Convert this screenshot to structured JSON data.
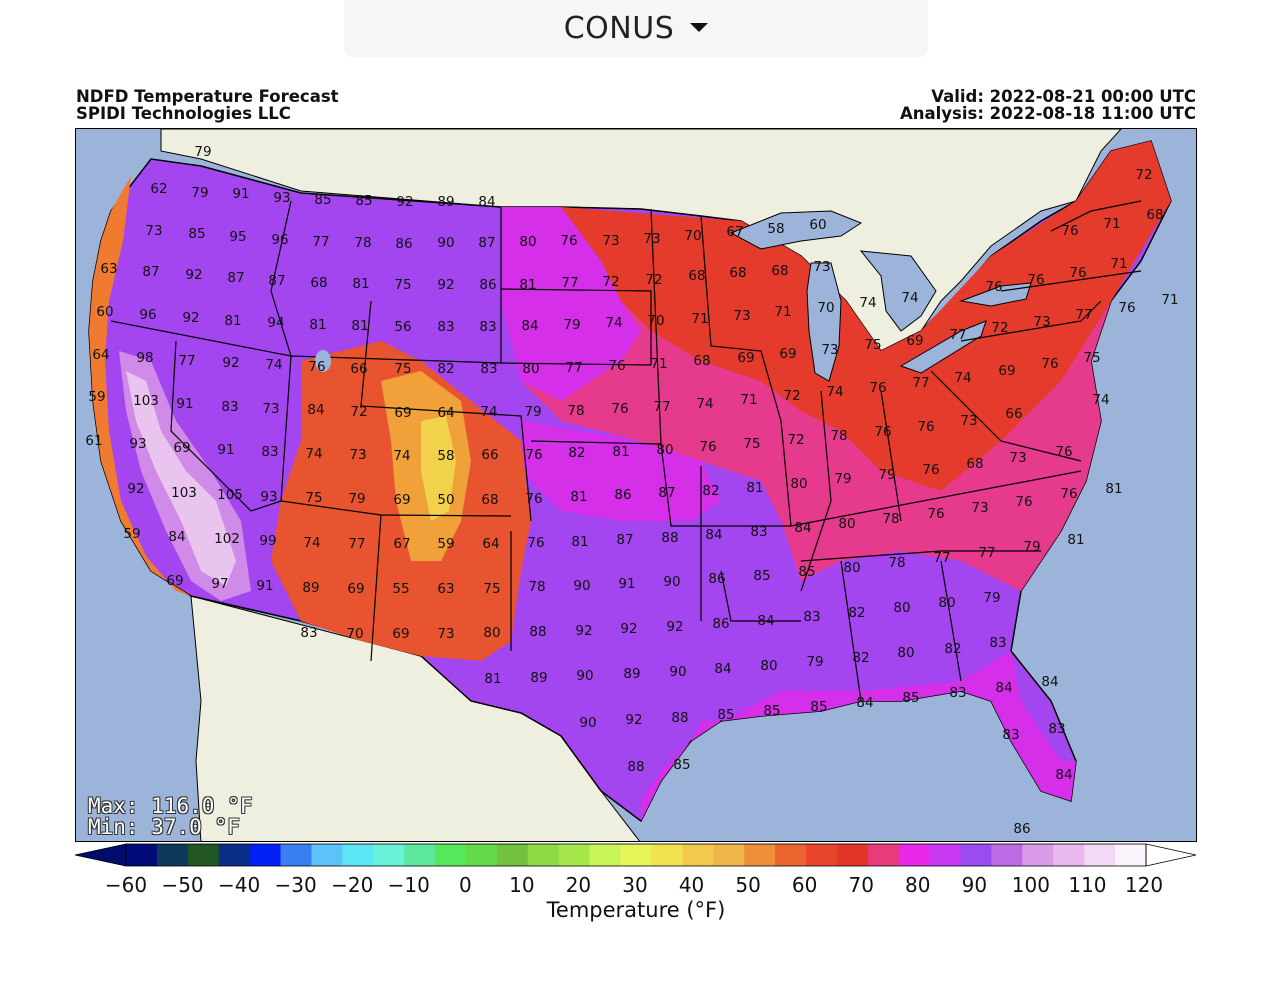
{
  "region_selector": {
    "label": "CONUS"
  },
  "header": {
    "title": "NDFD Temperature Forecast",
    "credit": "SPIDI Technologies LLC",
    "valid": "Valid: 2022-08-21 00:00 UTC",
    "analysis": "Analysis: 2022-08-18 11:00 UTC"
  },
  "stats": {
    "max": "Max: 116.0 °F",
    "min": "Min: 37.0 °F"
  },
  "colorbar": {
    "label": "Temperature (°F)",
    "ticks": [
      "−60",
      "−50",
      "−40",
      "−30",
      "−20",
      "−10",
      "0",
      "10",
      "20",
      "30",
      "40",
      "50",
      "60",
      "70",
      "80",
      "90",
      "100",
      "110",
      "120"
    ],
    "colors": [
      "#000b7a",
      "#10385a",
      "#225622",
      "#0a2f87",
      "#0320f5",
      "#3a7ff0",
      "#5cc2f7",
      "#5ce6f5",
      "#69f2d8",
      "#5ee89e",
      "#55e85c",
      "#64d94a",
      "#72c23e",
      "#8cdb44",
      "#a6e84b",
      "#c7f55a",
      "#e6f55a",
      "#f2e24e",
      "#f2c94c",
      "#f2b54a",
      "#ee8f3a",
      "#eb6430",
      "#e8452c",
      "#e3352a",
      "#e83b7c",
      "#e82ae8",
      "#c73af2",
      "#9b4bf0",
      "#bd6ae3",
      "#d99ae8",
      "#e8b8ef",
      "#f2d9f5",
      "#faf3fb"
    ],
    "under_color": "#000b6e",
    "over_color": "#ffffff"
  },
  "map": {
    "colors": {
      "ocean": "#9db4da",
      "land_outside": "#efefdf",
      "lakes": "#9db4da",
      "t_55_65": "#e8542f",
      "t_65_75": "#e43b2c",
      "t_75_85": "#e63a8c",
      "t_85_95": "#a446ef",
      "t_80_90": "#d52fea",
      "t_95_105": "#d08be8",
      "t_100_plus": "#e8c4ef",
      "coast_cool": "#f07a30"
    },
    "labels": [
      [
        "79",
        202,
        150
      ],
      [
        "62",
        158,
        187
      ],
      [
        "79",
        199,
        191
      ],
      [
        "91",
        240,
        192
      ],
      [
        "93",
        281,
        196
      ],
      [
        "85",
        322,
        198
      ],
      [
        "85",
        363,
        199
      ],
      [
        "92",
        404,
        200
      ],
      [
        "89",
        445,
        200
      ],
      [
        "84",
        486,
        200
      ],
      [
        "73",
        153,
        229
      ],
      [
        "85",
        196,
        232
      ],
      [
        "95",
        237,
        235
      ],
      [
        "96",
        279,
        238
      ],
      [
        "77",
        320,
        240
      ],
      [
        "78",
        362,
        241
      ],
      [
        "86",
        403,
        242
      ],
      [
        "90",
        445,
        241
      ],
      [
        "87",
        486,
        241
      ],
      [
        "80",
        527,
        240
      ],
      [
        "76",
        568,
        239
      ],
      [
        "73",
        610,
        239
      ],
      [
        "73",
        651,
        237
      ],
      [
        "70",
        692,
        234
      ],
      [
        "67",
        734,
        230
      ],
      [
        "58",
        775,
        227
      ],
      [
        "60",
        817,
        223
      ],
      [
        "71",
        1111,
        222
      ],
      [
        "72",
        1143,
        173
      ],
      [
        "76",
        1069,
        229
      ],
      [
        "68",
        1154,
        213
      ],
      [
        "63",
        108,
        267
      ],
      [
        "87",
        150,
        270
      ],
      [
        "92",
        193,
        273
      ],
      [
        "87",
        235,
        276
      ],
      [
        "87",
        276,
        279
      ],
      [
        "68",
        318,
        281
      ],
      [
        "81",
        360,
        282
      ],
      [
        "75",
        402,
        283
      ],
      [
        "92",
        445,
        283
      ],
      [
        "86",
        487,
        283
      ],
      [
        "81",
        527,
        283
      ],
      [
        "77",
        569,
        281
      ],
      [
        "72",
        610,
        280
      ],
      [
        "72",
        653,
        278
      ],
      [
        "68",
        696,
        274
      ],
      [
        "68",
        737,
        271
      ],
      [
        "68",
        779,
        269
      ],
      [
        "73",
        821,
        265
      ],
      [
        "76",
        993,
        285
      ],
      [
        "76",
        1035,
        278
      ],
      [
        "76",
        1077,
        271
      ],
      [
        "71",
        1118,
        262
      ],
      [
        "71",
        1169,
        298
      ],
      [
        "60",
        104,
        310
      ],
      [
        "96",
        147,
        313
      ],
      [
        "92",
        190,
        316
      ],
      [
        "81",
        232,
        319
      ],
      [
        "94",
        275,
        321
      ],
      [
        "81",
        317,
        323
      ],
      [
        "81",
        359,
        324
      ],
      [
        "56",
        402,
        325
      ],
      [
        "83",
        445,
        325
      ],
      [
        "83",
        487,
        325
      ],
      [
        "84",
        529,
        324
      ],
      [
        "79",
        571,
        323
      ],
      [
        "74",
        613,
        321
      ],
      [
        "70",
        655,
        319
      ],
      [
        "71",
        699,
        317
      ],
      [
        "73",
        741,
        314
      ],
      [
        "71",
        782,
        310
      ],
      [
        "70",
        825,
        306
      ],
      [
        "74",
        867,
        301
      ],
      [
        "74",
        909,
        296
      ],
      [
        "72",
        999,
        326
      ],
      [
        "73",
        1041,
        320
      ],
      [
        "77",
        1083,
        313
      ],
      [
        "76",
        1126,
        306
      ],
      [
        "64",
        100,
        353
      ],
      [
        "98",
        144,
        356
      ],
      [
        "77",
        186,
        359
      ],
      [
        "92",
        230,
        361
      ],
      [
        "74",
        273,
        363
      ],
      [
        "76",
        316,
        365
      ],
      [
        "66",
        358,
        367
      ],
      [
        "75",
        402,
        367
      ],
      [
        "82",
        445,
        367
      ],
      [
        "83",
        488,
        367
      ],
      [
        "80",
        530,
        367
      ],
      [
        "77",
        573,
        366
      ],
      [
        "76",
        616,
        364
      ],
      [
        "71",
        658,
        362
      ],
      [
        "68",
        701,
        359
      ],
      [
        "69",
        745,
        356
      ],
      [
        "69",
        787,
        352
      ],
      [
        "73",
        829,
        348
      ],
      [
        "75",
        872,
        343
      ],
      [
        "69",
        914,
        339
      ],
      [
        "77",
        957,
        333
      ],
      [
        "69",
        1006,
        369
      ],
      [
        "76",
        1049,
        362
      ],
      [
        "75",
        1091,
        356
      ],
      [
        "59",
        96,
        395
      ],
      [
        "103",
        145,
        399
      ],
      [
        "91",
        184,
        402
      ],
      [
        "83",
        229,
        405
      ],
      [
        "73",
        270,
        407
      ],
      [
        "84",
        315,
        408
      ],
      [
        "72",
        358,
        410
      ],
      [
        "69",
        402,
        411
      ],
      [
        "64",
        445,
        411
      ],
      [
        "74",
        488,
        410
      ],
      [
        "79",
        532,
        410
      ],
      [
        "78",
        575,
        409
      ],
      [
        "76",
        619,
        407
      ],
      [
        "77",
        661,
        405
      ],
      [
        "74",
        704,
        402
      ],
      [
        "71",
        748,
        398
      ],
      [
        "72",
        791,
        394
      ],
      [
        "74",
        834,
        390
      ],
      [
        "76",
        877,
        386
      ],
      [
        "77",
        920,
        381
      ],
      [
        "74",
        962,
        376
      ],
      [
        "74",
        1100,
        398
      ],
      [
        "61",
        93,
        439
      ],
      [
        "93",
        137,
        442
      ],
      [
        "69",
        181,
        446
      ],
      [
        "91",
        225,
        448
      ],
      [
        "83",
        269,
        450
      ],
      [
        "74",
        313,
        452
      ],
      [
        "73",
        357,
        453
      ],
      [
        "74",
        401,
        454
      ],
      [
        "58",
        445,
        454
      ],
      [
        "66",
        489,
        453
      ],
      [
        "76",
        533,
        453
      ],
      [
        "82",
        576,
        451
      ],
      [
        "81",
        620,
        450
      ],
      [
        "80",
        664,
        448
      ],
      [
        "76",
        707,
        445
      ],
      [
        "75",
        751,
        442
      ],
      [
        "72",
        795,
        438
      ],
      [
        "78",
        838,
        434
      ],
      [
        "76",
        882,
        430
      ],
      [
        "76",
        925,
        425
      ],
      [
        "73",
        968,
        419
      ],
      [
        "66",
        1013,
        412
      ],
      [
        "76",
        1063,
        450
      ],
      [
        "92",
        135,
        487
      ],
      [
        "103",
        183,
        491
      ],
      [
        "105",
        229,
        493
      ],
      [
        "93",
        268,
        495
      ],
      [
        "75",
        313,
        496
      ],
      [
        "79",
        356,
        497
      ],
      [
        "69",
        401,
        498
      ],
      [
        "50",
        445,
        498
      ],
      [
        "68",
        489,
        498
      ],
      [
        "76",
        533,
        497
      ],
      [
        "81",
        578,
        495
      ],
      [
        "86",
        622,
        493
      ],
      [
        "87",
        666,
        491
      ],
      [
        "82",
        710,
        489
      ],
      [
        "81",
        754,
        486
      ],
      [
        "80",
        798,
        482
      ],
      [
        "79",
        842,
        477
      ],
      [
        "79",
        886,
        473
      ],
      [
        "76",
        930,
        468
      ],
      [
        "68",
        974,
        462
      ],
      [
        "73",
        1017,
        456
      ],
      [
        "76",
        1068,
        492
      ],
      [
        "81",
        1113,
        487
      ],
      [
        "59",
        131,
        532
      ],
      [
        "84",
        176,
        535
      ],
      [
        "102",
        226,
        537
      ],
      [
        "99",
        267,
        539
      ],
      [
        "74",
        311,
        541
      ],
      [
        "77",
        356,
        542
      ],
      [
        "67",
        401,
        542
      ],
      [
        "59",
        445,
        542
      ],
      [
        "64",
        490,
        542
      ],
      [
        "76",
        535,
        541
      ],
      [
        "81",
        579,
        540
      ],
      [
        "87",
        624,
        538
      ],
      [
        "88",
        669,
        536
      ],
      [
        "84",
        713,
        533
      ],
      [
        "83",
        758,
        530
      ],
      [
        "84",
        802,
        526
      ],
      [
        "80",
        846,
        522
      ],
      [
        "78",
        890,
        517
      ],
      [
        "76",
        935,
        512
      ],
      [
        "73",
        979,
        506
      ],
      [
        "76",
        1023,
        500
      ],
      [
        "81",
        1075,
        538
      ],
      [
        "69",
        174,
        579
      ],
      [
        "97",
        219,
        582
      ],
      [
        "91",
        264,
        584
      ],
      [
        "89",
        310,
        586
      ],
      [
        "69",
        355,
        587
      ],
      [
        "55",
        400,
        587
      ],
      [
        "63",
        445,
        587
      ],
      [
        "75",
        491,
        587
      ],
      [
        "78",
        536,
        585
      ],
      [
        "90",
        581,
        584
      ],
      [
        "91",
        626,
        582
      ],
      [
        "90",
        671,
        580
      ],
      [
        "86",
        716,
        577
      ],
      [
        "85",
        761,
        574
      ],
      [
        "85",
        806,
        570
      ],
      [
        "80",
        851,
        566
      ],
      [
        "78",
        896,
        561
      ],
      [
        "77",
        941,
        556
      ],
      [
        "77",
        986,
        551
      ],
      [
        "79",
        1031,
        545
      ],
      [
        "83",
        308,
        631
      ],
      [
        "70",
        354,
        632
      ],
      [
        "69",
        400,
        632
      ],
      [
        "73",
        445,
        632
      ],
      [
        "80",
        491,
        631
      ],
      [
        "88",
        537,
        630
      ],
      [
        "92",
        583,
        629
      ],
      [
        "92",
        628,
        627
      ],
      [
        "92",
        674,
        625
      ],
      [
        "86",
        720,
        622
      ],
      [
        "84",
        765,
        619
      ],
      [
        "83",
        811,
        615
      ],
      [
        "82",
        856,
        611
      ],
      [
        "80",
        901,
        606
      ],
      [
        "80",
        946,
        601
      ],
      [
        "79",
        991,
        596
      ],
      [
        "81",
        492,
        677
      ],
      [
        "89",
        538,
        676
      ],
      [
        "90",
        584,
        674
      ],
      [
        "89",
        631,
        672
      ],
      [
        "90",
        677,
        670
      ],
      [
        "84",
        722,
        667
      ],
      [
        "80",
        768,
        664
      ],
      [
        "79",
        814,
        660
      ],
      [
        "82",
        860,
        656
      ],
      [
        "80",
        905,
        651
      ],
      [
        "82",
        952,
        647
      ],
      [
        "83",
        997,
        641
      ],
      [
        "90",
        587,
        721
      ],
      [
        "92",
        633,
        718
      ],
      [
        "88",
        679,
        716
      ],
      [
        "85",
        725,
        713
      ],
      [
        "85",
        771,
        709
      ],
      [
        "85",
        818,
        705
      ],
      [
        "84",
        864,
        701
      ],
      [
        "85",
        910,
        696
      ],
      [
        "83",
        957,
        691
      ],
      [
        "84",
        1003,
        686
      ],
      [
        "84",
        1049,
        680
      ],
      [
        "88",
        635,
        765
      ],
      [
        "85",
        681,
        763
      ],
      [
        "83",
        1010,
        733
      ],
      [
        "83",
        1056,
        727
      ],
      [
        "84",
        1063,
        773
      ],
      [
        "86",
        1021,
        827
      ]
    ]
  }
}
